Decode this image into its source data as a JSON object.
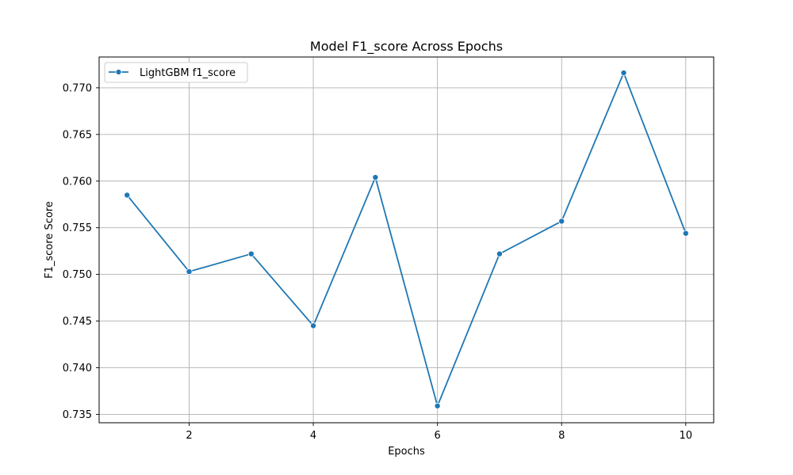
{
  "chart_data": {
    "type": "line",
    "title": "Model F1_score Across Epochs",
    "xlabel": "Epochs",
    "ylabel": "F1_score Score",
    "x": [
      1,
      2,
      3,
      4,
      5,
      6,
      7,
      8,
      9,
      10
    ],
    "series": [
      {
        "name": "LightGBM f1_score",
        "color": "#1f77b4",
        "marker": "circle",
        "values": [
          0.7585,
          0.7503,
          0.7522,
          0.7445,
          0.7604,
          0.7359,
          0.7522,
          0.7557,
          0.7716,
          0.7544
        ]
      }
    ],
    "xlim": [
      0.55,
      10.45
    ],
    "ylim": [
      0.7341,
      0.7733
    ],
    "xticks": [
      2,
      4,
      6,
      8,
      10
    ],
    "xtick_labels": [
      "2",
      "4",
      "6",
      "8",
      "10"
    ],
    "yticks": [
      0.735,
      0.74,
      0.745,
      0.75,
      0.755,
      0.76,
      0.765,
      0.77
    ],
    "ytick_labels": [
      "0.735",
      "0.740",
      "0.745",
      "0.750",
      "0.755",
      "0.760",
      "0.765",
      "0.770"
    ],
    "grid": true,
    "legend_position": "upper left"
  }
}
